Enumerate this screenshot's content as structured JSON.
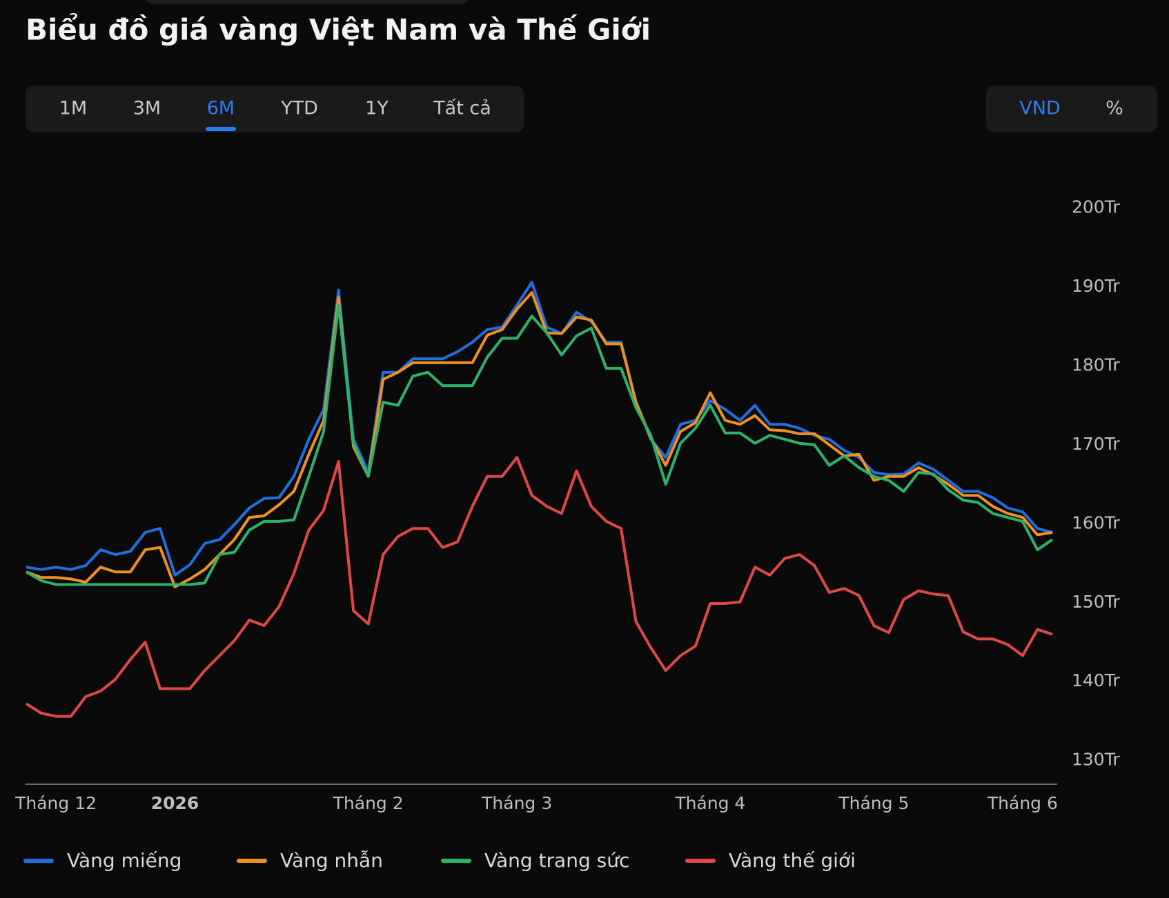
{
  "chart_data": {
    "type": "line",
    "title": "Biểu đồ giá vàng Việt Nam và Thế Giới",
    "categories": [
      null,
      null,
      "Tháng 12",
      null,
      null,
      null,
      null,
      null,
      null,
      null,
      "2026",
      null,
      null,
      null,
      null,
      null,
      null,
      null,
      null,
      null,
      null,
      null,
      null,
      "Tháng 2",
      null,
      null,
      null,
      null,
      null,
      null,
      null,
      null,
      null,
      "Tháng 3",
      null,
      null,
      null,
      null,
      null,
      null,
      null,
      null,
      null,
      null,
      null,
      null,
      "Tháng 4",
      null,
      null,
      null,
      null,
      null,
      null,
      null,
      null,
      null,
      null,
      "Tháng 5",
      null,
      null,
      null,
      null,
      null,
      null,
      null,
      null,
      null,
      "Tháng 6",
      null,
      null
    ],
    "series": [
      {
        "name": "Vàng miếng",
        "color": "#1f6fe0",
        "values": [
          154.5,
          154.2,
          154.5,
          154.2,
          154.7,
          156.7,
          156.1,
          156.5,
          158.9,
          159.4,
          153.5,
          154.8,
          157.5,
          158.0,
          159.9,
          162.0,
          163.2,
          163.3,
          166.0,
          170.7,
          174.5,
          189.6,
          170.7,
          166.5,
          179.2,
          179.2,
          180.9,
          180.9,
          180.9,
          181.8,
          183.0,
          184.6,
          184.9,
          187.7,
          190.6,
          184.9,
          184.1,
          186.8,
          185.6,
          183.0,
          183.0,
          175.4,
          170.7,
          168.4,
          172.6,
          173.1,
          175.6,
          174.5,
          173.1,
          175.0,
          172.6,
          172.6,
          172.1,
          171.2,
          170.7,
          169.3,
          168.4,
          166.5,
          166.2,
          166.3,
          167.7,
          166.9,
          165.5,
          164.1,
          164.1,
          163.3,
          162.0,
          161.5,
          159.4,
          158.9
        ]
      },
      {
        "name": "Vàng nhẫn",
        "color": "#f0901e",
        "values": [
          153.9,
          153.2,
          153.2,
          153.0,
          152.6,
          154.5,
          153.9,
          153.9,
          156.7,
          157.0,
          152.0,
          153.0,
          154.2,
          156.1,
          158.0,
          160.8,
          161.0,
          162.4,
          164.1,
          168.8,
          173.1,
          188.7,
          169.8,
          166.0,
          178.3,
          179.2,
          180.4,
          180.4,
          180.4,
          180.4,
          180.4,
          183.9,
          184.6,
          187.2,
          189.3,
          184.2,
          184.1,
          186.2,
          185.8,
          182.8,
          182.8,
          175.4,
          170.9,
          167.4,
          171.7,
          172.8,
          176.6,
          173.1,
          172.6,
          173.7,
          171.9,
          171.8,
          171.4,
          171.4,
          170.0,
          168.6,
          168.8,
          165.5,
          166.0,
          166.0,
          167.1,
          166.2,
          165.0,
          163.6,
          163.6,
          162.2,
          161.3,
          160.8,
          158.6,
          158.9
        ]
      },
      {
        "name": "Vàng trang sức",
        "color": "#2bb36a",
        "values": [
          153.9,
          152.8,
          152.3,
          152.3,
          152.3,
          152.3,
          152.3,
          152.3,
          152.3,
          152.3,
          152.3,
          152.3,
          152.5,
          156.1,
          156.4,
          159.2,
          160.3,
          160.3,
          160.5,
          166.0,
          171.7,
          187.7,
          170.3,
          166.0,
          175.4,
          175.0,
          178.7,
          179.2,
          177.5,
          177.5,
          177.5,
          181.1,
          183.5,
          183.5,
          186.3,
          184.2,
          181.4,
          183.8,
          184.8,
          179.7,
          179.7,
          174.7,
          171.2,
          165.0,
          170.2,
          172.1,
          175.0,
          171.5,
          171.5,
          170.2,
          171.2,
          170.7,
          170.2,
          170.0,
          167.4,
          168.6,
          167.1,
          166.0,
          165.5,
          164.1,
          166.5,
          166.3,
          164.3,
          163.0,
          162.7,
          161.3,
          160.8,
          160.3,
          156.7,
          158.0
        ]
      },
      {
        "name": "Vàng thế giới",
        "color": "#e04848",
        "values": [
          137.2,
          136.0,
          135.6,
          135.6,
          138.1,
          138.8,
          140.3,
          142.8,
          145.0,
          139.1,
          139.1,
          139.1,
          141.4,
          143.3,
          145.2,
          147.8,
          147.1,
          149.5,
          153.7,
          159.2,
          161.7,
          167.9,
          149.0,
          147.3,
          156.1,
          158.4,
          159.4,
          159.4,
          157.0,
          157.7,
          162.2,
          166.0,
          166.0,
          168.4,
          163.6,
          162.2,
          161.3,
          166.7,
          162.2,
          160.3,
          159.4,
          147.6,
          144.3,
          141.4,
          143.3,
          144.5,
          149.9,
          149.9,
          150.1,
          154.5,
          153.5,
          155.6,
          156.1,
          154.7,
          151.3,
          151.8,
          150.9,
          147.1,
          146.2,
          150.4,
          151.5,
          151.1,
          150.9,
          146.3,
          145.4,
          145.4,
          144.7,
          143.3,
          146.6,
          146.0
        ]
      }
    ],
    "ylim": [
      127,
      206
    ],
    "yticks": [
      {
        "value": 130,
        "label": "130Tr"
      },
      {
        "value": 140,
        "label": "140Tr"
      },
      {
        "value": 150,
        "label": "150Tr"
      },
      {
        "value": 160,
        "label": "160Tr"
      },
      {
        "value": 170,
        "label": "170Tr"
      },
      {
        "value": 180,
        "label": "180Tr"
      },
      {
        "value": 190,
        "label": "190Tr"
      },
      {
        "value": 200,
        "label": "200Tr"
      }
    ],
    "grid": false,
    "legend": "bottom"
  },
  "controls": {
    "ranges": [
      "1M",
      "3M",
      "6M",
      "YTD",
      "1Y",
      "Tất cả"
    ],
    "units": [
      "VND",
      "%"
    ]
  }
}
